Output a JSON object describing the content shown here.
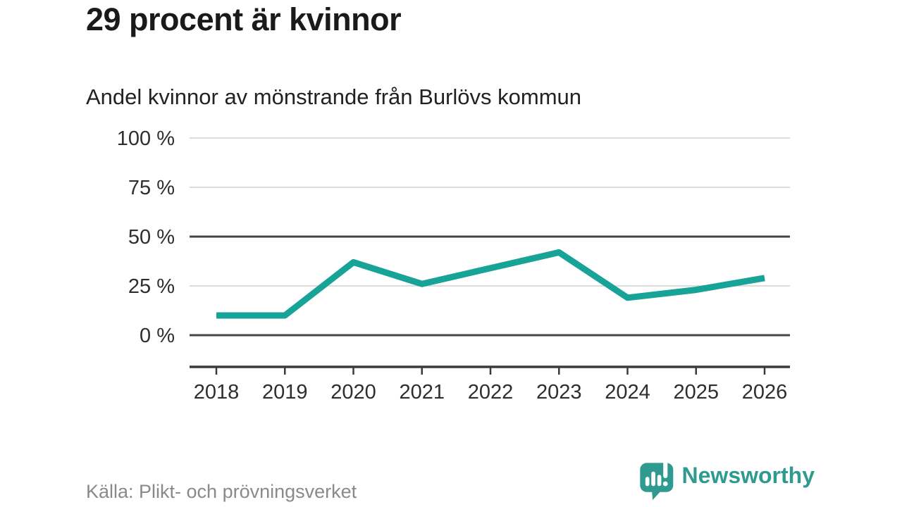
{
  "header": {
    "title": "29 procent är kvinnor",
    "subtitle": "Andel kvinnor av mönstrande från Burlövs kommun"
  },
  "chart_data": {
    "type": "line",
    "title": "29 procent är kvinnor",
    "subtitle": "Andel kvinnor av mönstrande från Burlövs kommun",
    "categories": [
      "2018",
      "2019",
      "2020",
      "2021",
      "2022",
      "2023",
      "2024",
      "2025",
      "2026"
    ],
    "series": [
      {
        "name": "Andel kvinnor av mönstrande",
        "values": [
          10,
          10,
          37,
          26,
          34,
          42,
          19,
          23,
          29
        ]
      }
    ],
    "unit": "%",
    "xlabel": "",
    "ylabel": "",
    "ylim": [
      0,
      100
    ],
    "grid": true,
    "legend_position": "none",
    "y_ticks": [
      {
        "value": 100,
        "label": "100 %",
        "emphasis": false
      },
      {
        "value": 75,
        "label": "75 %",
        "emphasis": false
      },
      {
        "value": 50,
        "label": "50 %",
        "emphasis": true
      },
      {
        "value": 25,
        "label": "25 %",
        "emphasis": false
      },
      {
        "value": 0,
        "label": "0 %",
        "emphasis": true
      }
    ],
    "line_color": "#17a398",
    "grid_color_light": "#dcdcdc",
    "grid_color_dark": "#454545",
    "axis_color": "#3a3a3a",
    "tick_label_color": "#2e2e2e"
  },
  "footer": {
    "source": "Källa: Plikt- och prövningsverket",
    "logo_text": "Newsworthy",
    "logo_color": "#2f9a90"
  }
}
